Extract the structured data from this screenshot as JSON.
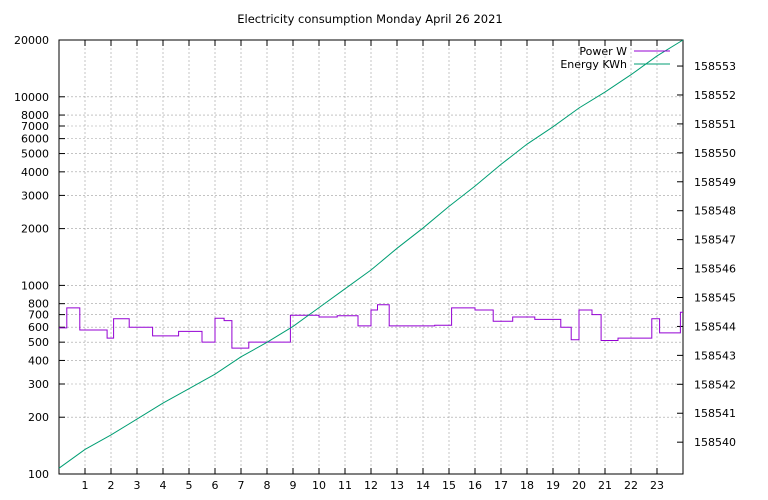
{
  "chart_data": {
    "type": "line",
    "title": "Electricity consumption Monday April 26 2021",
    "x": {
      "range": [
        0,
        24
      ],
      "ticks": [
        1,
        2,
        3,
        4,
        5,
        6,
        7,
        8,
        9,
        10,
        11,
        12,
        13,
        14,
        15,
        16,
        17,
        18,
        19,
        20,
        21,
        22,
        23
      ],
      "tick_labels": [
        "1",
        "2",
        "3",
        "4",
        "5",
        "6",
        "7",
        "8",
        "9",
        "10",
        "11",
        "12",
        "13",
        "14",
        "15",
        "16",
        "17",
        "18",
        "19",
        "20",
        "21",
        "22",
        "23"
      ]
    },
    "y_left": {
      "scale": "log",
      "range": [
        100,
        20000
      ],
      "ticks": [
        100,
        200,
        300,
        400,
        500,
        600,
        700,
        800,
        1000,
        2000,
        3000,
        4000,
        5000,
        6000,
        7000,
        8000,
        10000,
        20000
      ],
      "tick_labels": [
        "100",
        "200",
        "300",
        "400",
        "500",
        "600",
        "700",
        "800",
        "1000",
        "2000",
        "3000",
        "4000",
        "5000",
        "6000",
        "7000",
        "8000",
        "10000",
        "20000"
      ]
    },
    "y_right": {
      "scale": "linear",
      "range": [
        158538.9,
        158553.9
      ],
      "ticks": [
        158540,
        158541,
        158542,
        158543,
        158544,
        158545,
        158546,
        158547,
        158548,
        158549,
        158550,
        158551,
        158552,
        158553
      ],
      "tick_labels": [
        "158540",
        "158541",
        "158542",
        "158543",
        "158544",
        "158545",
        "158546",
        "158547",
        "158548",
        "158549",
        "158550",
        "158551",
        "158552",
        "158553"
      ]
    },
    "grid": true,
    "legend_position": "top-right",
    "series": [
      {
        "name": "Power W",
        "axis": "left",
        "color": "#9400d3",
        "step": true,
        "x": [
          0.0,
          0.3,
          0.8,
          1.85,
          2.1,
          2.7,
          3.6,
          4.6,
          5.5,
          6.0,
          6.35,
          6.65,
          7.3,
          8.9,
          10.0,
          10.7,
          11.5,
          12.0,
          12.25,
          12.7,
          14.45,
          15.1,
          16.0,
          16.7,
          17.45,
          18.3,
          19.3,
          19.7,
          20.0,
          20.5,
          20.85,
          21.5,
          22.8,
          23.1,
          23.9
        ],
        "y": [
          595,
          760,
          580,
          525,
          665,
          600,
          540,
          570,
          500,
          670,
          650,
          465,
          500,
          695,
          680,
          690,
          610,
          740,
          790,
          610,
          615,
          760,
          740,
          645,
          680,
          660,
          600,
          515,
          740,
          700,
          510,
          525,
          665,
          560,
          720
        ]
      },
      {
        "name": "Energy KWh",
        "axis": "right",
        "color": "#009e73",
        "x": [
          0,
          1,
          2,
          3,
          4,
          5,
          6,
          7,
          8,
          9,
          10,
          11,
          12,
          13,
          14,
          15,
          16,
          17,
          18,
          19,
          20,
          21,
          22,
          23,
          24
        ],
        "y": [
          158539.1,
          158539.75,
          158540.25,
          158540.8,
          158541.35,
          158541.85,
          158542.35,
          158542.95,
          158543.45,
          158544.0,
          158544.65,
          158545.3,
          158545.95,
          158546.7,
          158547.4,
          158548.15,
          158548.85,
          158549.6,
          158550.3,
          158550.9,
          158551.55,
          158552.1,
          158552.7,
          158553.35,
          158553.9
        ]
      }
    ]
  }
}
